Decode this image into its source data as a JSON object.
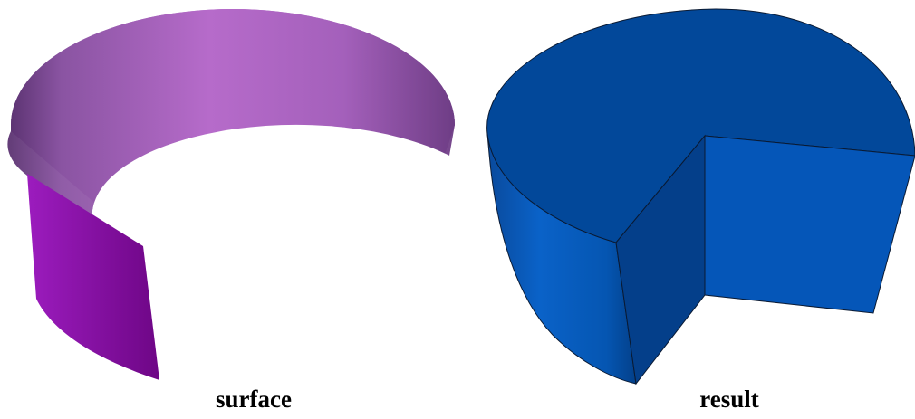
{
  "captions": {
    "left": "surface",
    "right": "result"
  },
  "colors": {
    "surface_light": "#b46ac6",
    "surface_mid": "#9a58b0",
    "surface_dark": "#6e3b82",
    "surface_front": "#8a0aa8",
    "result_top": "#02489a",
    "result_side_light": "#0a5cc0",
    "result_side_dark": "#043d86",
    "result_cut_face": "#0556b8",
    "result_inner_dark": "#04408a",
    "outline": "#1a1a2a"
  }
}
